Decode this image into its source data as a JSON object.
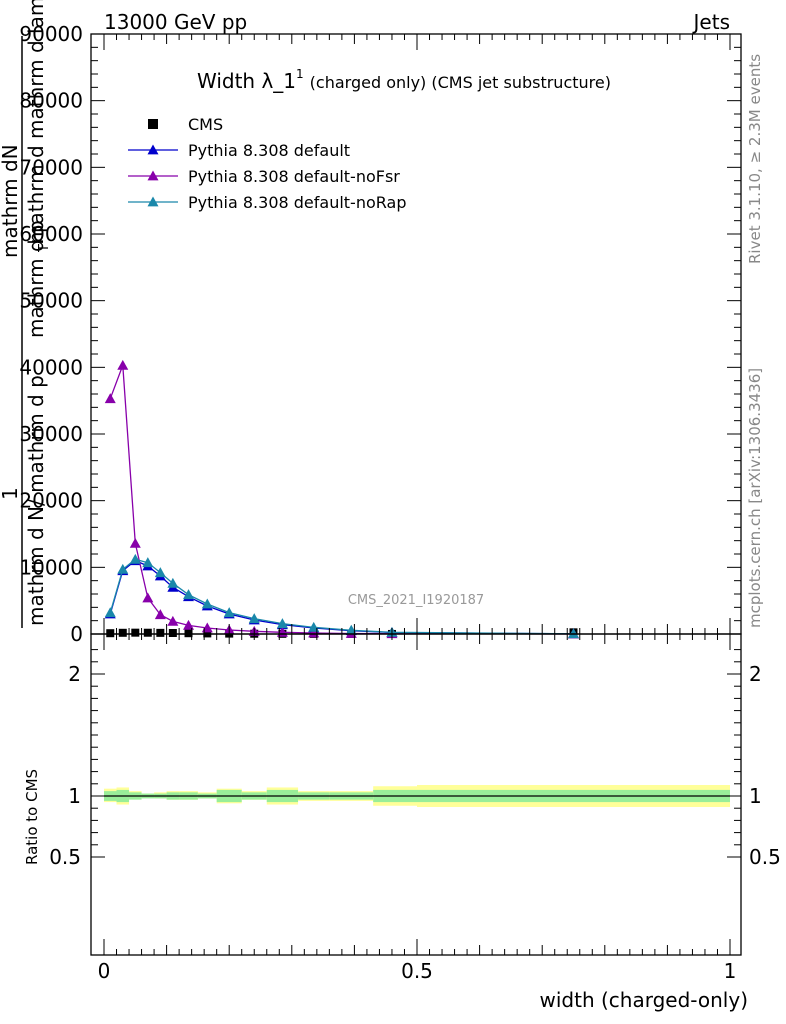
{
  "header": {
    "left": "13000 GeV pp",
    "right": "Jets"
  },
  "side": {
    "rivet": "Rivet 3.1.10, ≥ 2.3M events",
    "mcplots": "mcplots.cern.ch [arXiv:1306.3436]"
  },
  "watermark": "CMS_2021_I1920187",
  "chart_data": {
    "type": "line",
    "title": "Width λ_1",
    "title_sup": "1",
    "subtitle": "(charged only) (CMS jet substructure)",
    "ylabel_lines": [
      "1",
      "mathrm d N/ mathrm d p",
      "mathrm dN",
      "mathrm d p",
      "T",
      "mathrm d mathrm d lambda"
    ],
    "xlabel": "width (charged-only)",
    "ratio_ylabel": "Ratio to CMS",
    "xlim": [
      0,
      1
    ],
    "ylim": [
      0,
      90000
    ],
    "yticks": [
      0,
      10000,
      20000,
      30000,
      40000,
      50000,
      60000,
      70000,
      80000,
      90000
    ],
    "ytick_labels": [
      "0",
      "10000",
      "20000",
      "30000",
      "40000",
      "50000",
      "60000",
      "70000",
      "80000",
      "90000"
    ],
    "xticks": [
      0,
      0.5,
      1
    ],
    "xtick_labels": [
      "0",
      "0.5",
      "1"
    ],
    "ratio_ylim": [
      0.4,
      2.3
    ],
    "ratio_yticks": [
      0.5,
      1,
      2
    ],
    "ratio_ytick_labels": [
      "0.5",
      "1",
      "2"
    ],
    "legend": {
      "placement": "top-left"
    },
    "series": [
      {
        "name": "CMS",
        "color": "#000000",
        "marker": "square",
        "x": [
          0.01,
          0.03,
          0.05,
          0.07,
          0.09,
          0.11,
          0.135,
          0.165,
          0.2,
          0.24,
          0.285,
          0.335,
          0.395,
          0.46,
          0.75
        ],
        "y": [
          120,
          180,
          200,
          190,
          170,
          150,
          120,
          90,
          60,
          40,
          25,
          15,
          8,
          5,
          250
        ]
      },
      {
        "name": "Pythia 8.308 default",
        "color": "#0000cc",
        "marker": "triangle",
        "x": [
          0.01,
          0.03,
          0.05,
          0.07,
          0.09,
          0.11,
          0.135,
          0.165,
          0.2,
          0.24,
          0.285,
          0.335,
          0.395,
          0.46,
          0.75
        ],
        "y": [
          3000,
          9500,
          11000,
          10200,
          8700,
          7000,
          5600,
          4200,
          3000,
          2100,
          1400,
          900,
          500,
          220,
          30
        ]
      },
      {
        "name": "Pythia 8.308 default-noFsr",
        "color": "#8800aa",
        "marker": "triangle",
        "x": [
          0.01,
          0.03,
          0.05,
          0.07,
          0.09,
          0.11,
          0.135,
          0.165,
          0.2,
          0.24,
          0.285,
          0.335,
          0.395,
          0.46,
          0.75
        ],
        "y": [
          35300,
          40300,
          13600,
          5400,
          2900,
          1900,
          1300,
          900,
          600,
          400,
          250,
          150,
          80,
          40,
          5
        ]
      },
      {
        "name": "Pythia 8.308 default-noRap",
        "color": "#1a88aa",
        "marker": "triangle",
        "x": [
          0.01,
          0.03,
          0.05,
          0.07,
          0.09,
          0.11,
          0.135,
          0.165,
          0.2,
          0.24,
          0.285,
          0.335,
          0.395,
          0.46,
          0.75
        ],
        "y": [
          3200,
          9700,
          11200,
          10700,
          9200,
          7600,
          5900,
          4500,
          3200,
          2300,
          1550,
          1000,
          560,
          250,
          35
        ]
      }
    ],
    "ratio_bands": {
      "edges": [
        0,
        0.02,
        0.04,
        0.06,
        0.08,
        0.1,
        0.12,
        0.15,
        0.18,
        0.22,
        0.26,
        0.31,
        0.36,
        0.43,
        0.5,
        1.0
      ],
      "inner_lo": [
        0.96,
        0.95,
        0.97,
        0.98,
        0.98,
        0.97,
        0.97,
        0.98,
        0.95,
        0.97,
        0.95,
        0.97,
        0.97,
        0.95,
        0.95
      ],
      "inner_hi": [
        1.04,
        1.05,
        1.03,
        1.02,
        1.02,
        1.03,
        1.03,
        1.02,
        1.05,
        1.03,
        1.05,
        1.03,
        1.03,
        1.05,
        1.05
      ],
      "outer_lo": [
        0.95,
        0.93,
        0.98,
        0.99,
        0.98,
        0.97,
        0.97,
        0.98,
        0.94,
        0.97,
        0.93,
        0.96,
        0.96,
        0.92,
        0.91
      ],
      "outer_hi": [
        1.06,
        1.07,
        1.04,
        1.02,
        1.03,
        1.04,
        1.04,
        1.03,
        1.06,
        1.04,
        1.07,
        1.04,
        1.04,
        1.08,
        1.09
      ],
      "inner_color": "#99ee99",
      "outer_color": "#ffff99"
    }
  }
}
